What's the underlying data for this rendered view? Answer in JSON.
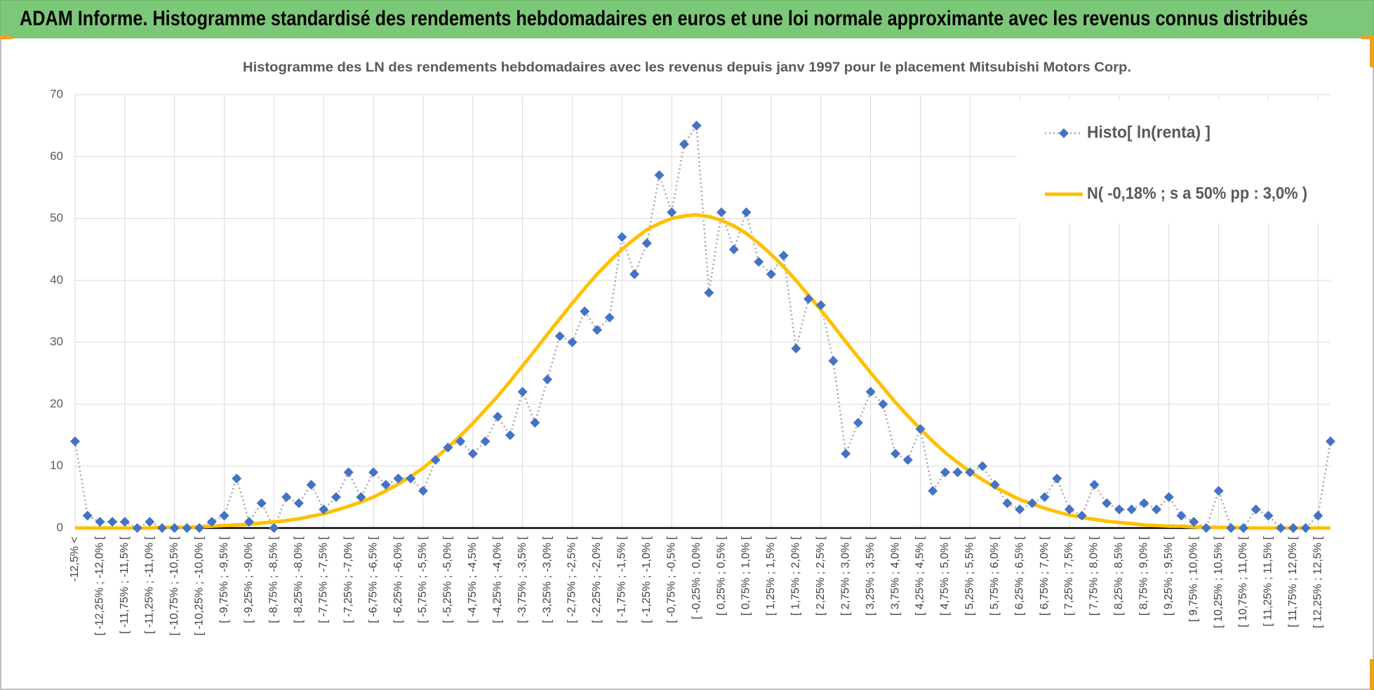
{
  "header": {
    "title": "ADAM Informe. Histogramme standardisé des rendements hebdomadaires en euros et une loi normale approximante avec les revenus connus distribués"
  },
  "chart_data": {
    "type": "line",
    "title": "Histogramme des LN des rendements hebdomadaires avec les revenus depuis janv 1997 pour le placement Mitsubishi Motors Corp.",
    "categories": [
      "-12,5% <",
      null,
      "[ -12,25% ; -12,0% [",
      null,
      "[ -11,75% ; -11,5% [",
      null,
      "[ -11,25% ; -11,0% [",
      null,
      "[ -10,75% ; -10,5% [",
      null,
      "[ -10,25% ; -10,0% [",
      null,
      "[ -9,75% ; -9,5% [",
      null,
      "[ -9,25% ; -9,0% [",
      null,
      "[ -8,75% ; -8,5% [",
      null,
      "[ -8,25% ; -8,0% [",
      null,
      "[ -7,75% ; -7,5% [",
      null,
      "[ -7,25% ; -7,0% [",
      null,
      "[ -6,75% ; -6,5% [",
      null,
      "[ -6,25% ; -6,0% [",
      null,
      "[ -5,75% ; -5,5% [",
      null,
      "[ -5,25% ; -5,0% [",
      null,
      "[ -4,75% ; -4,5% [",
      null,
      "[ -4,25% ; -4,0% [",
      null,
      "[ -3,75% ; -3,5% [",
      null,
      "[ -3,25% ; -3,0% [",
      null,
      "[ -2,75% ; -2,5% [",
      null,
      "[ -2,25% ; -2,0% [",
      null,
      "[ -1,75% ; -1,5% [",
      null,
      "[ -1,25% ; -1,0% [",
      null,
      "[ -0,75% ; -0,5% [",
      null,
      "[ -0,25% ; 0,0% [",
      null,
      "[ 0,25% ; 0,5% [",
      null,
      "[ 0,75% ; 1,0% [",
      null,
      "[ 1,25% ; 1,5% [",
      null,
      "[ 1,75% ; 2,0% [",
      null,
      "[ 2,25% ; 2,5% [",
      null,
      "[ 2,75% ; 3,0% [",
      null,
      "[ 3,25% ; 3,5% [",
      null,
      "[ 3,75% ; 4,0% [",
      null,
      "[ 4,25% ; 4,5% [",
      null,
      "[ 4,75% ; 5,0% [",
      null,
      "[ 5,25% ; 5,5% [",
      null,
      "[ 5,75% ; 6,0% [",
      null,
      "[ 6,25% ; 6,5% [",
      null,
      "[ 6,75% ; 7,0% [",
      null,
      "[ 7,25% ; 7,5% [",
      null,
      "[ 7,75% ; 8,0% [",
      null,
      "[ 8,25% ; 8,5% [",
      null,
      "[ 8,75% ; 9,0% [",
      null,
      "[ 9,25% ; 9,5% [",
      null,
      "[ 9,75% ; 10,0% [",
      null,
      "[ 10,25% ; 10,5% [",
      null,
      "[ 10,75% ; 11,0% [",
      null,
      "[ 11,25% ; 11,5% [",
      null,
      "[ 11,75% ; 12,0% [",
      null,
      "[ 12,25% ; 12,5% [",
      null
    ],
    "series": [
      {
        "name": "Histo[ ln(renta) ]",
        "color": "#4472c4",
        "line_color": "#a5a5a5",
        "values": [
          14,
          2,
          1,
          1,
          1,
          0,
          1,
          0,
          0,
          0,
          0,
          1,
          2,
          8,
          1,
          4,
          0,
          5,
          4,
          7,
          3,
          5,
          9,
          5,
          9,
          7,
          8,
          8,
          6,
          11,
          13,
          14,
          12,
          14,
          18,
          15,
          22,
          17,
          24,
          31,
          30,
          35,
          32,
          34,
          47,
          41,
          46,
          57,
          51,
          62,
          65,
          38,
          51,
          45,
          51,
          43,
          41,
          44,
          29,
          37,
          36,
          27,
          12,
          17,
          22,
          20,
          12,
          11,
          16,
          6,
          9,
          9,
          9,
          10,
          7,
          4,
          3,
          4,
          5,
          8,
          3,
          2,
          7,
          4,
          3,
          3,
          4,
          3,
          5,
          2,
          1,
          0,
          6,
          0,
          0,
          3,
          2,
          0,
          0,
          0,
          2,
          14
        ]
      },
      {
        "name": "N( -0,18% ; s a 50% pp : 3,0% )",
        "color": "#ffc000",
        "values": [
          0.0,
          0.0,
          0.0,
          0.0,
          0.0,
          0.0,
          0.0,
          0.1,
          0.1,
          0.1,
          0.2,
          0.3,
          0.4,
          0.5,
          0.6,
          0.8,
          1.0,
          1.2,
          1.5,
          1.9,
          2.3,
          2.9,
          3.5,
          4.2,
          5.0,
          6.0,
          7.1,
          8.3,
          9.7,
          11.3,
          13.0,
          14.9,
          16.9,
          19.1,
          21.3,
          23.7,
          26.2,
          28.7,
          31.3,
          33.8,
          36.3,
          38.7,
          41.0,
          43.1,
          45.0,
          46.7,
          48.2,
          49.2,
          50.0,
          50.4,
          50.6,
          50.3,
          49.7,
          48.8,
          47.6,
          46.0,
          44.2,
          42.2,
          40.0,
          37.6,
          35.2,
          32.7,
          30.1,
          27.6,
          25.1,
          22.7,
          20.3,
          18.1,
          16.0,
          14.0,
          12.2,
          10.6,
          9.1,
          7.8,
          6.6,
          5.6,
          4.6,
          3.9,
          3.2,
          2.6,
          2.1,
          1.7,
          1.4,
          1.1,
          0.9,
          0.7,
          0.5,
          0.4,
          0.3,
          0.3,
          0.2,
          0.1,
          0.1,
          0.1,
          0.0,
          0.0,
          0.0,
          0.0,
          0.0,
          0.0,
          0.0,
          0.0
        ]
      }
    ],
    "ylim": [
      0,
      70
    ],
    "yticks": [
      0,
      10,
      20,
      30,
      40,
      50,
      60,
      70
    ],
    "grid": true,
    "legend": "top-right"
  }
}
